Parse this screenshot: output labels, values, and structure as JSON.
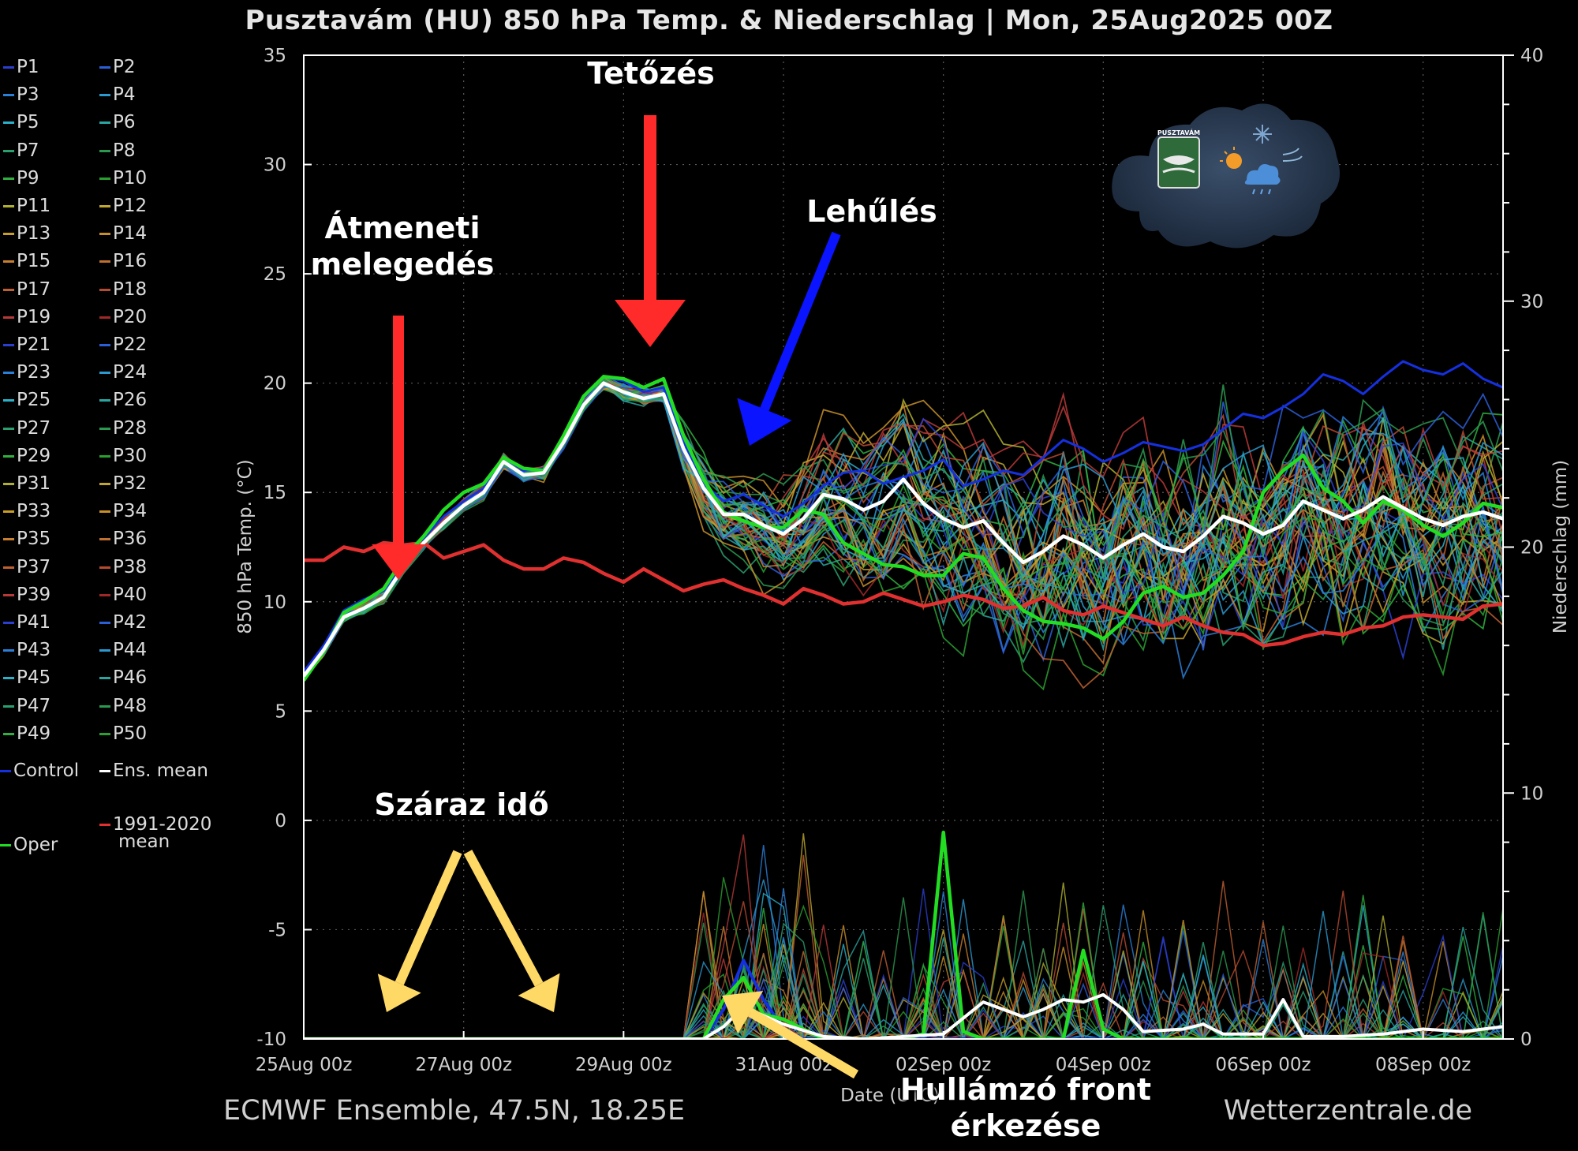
{
  "title": "Pusztavám  (HU)  850 hPa Temp. & Niederschlag | Mon, 25Aug2025 00Z",
  "footer": {
    "left": "ECMWF Ensemble, 47.5N, 18.25E",
    "right": "Wetterzentrale.de",
    "xlabel_partial": "Date (UTC)"
  },
  "legend": {
    "members": [
      "P1",
      "P2",
      "P3",
      "P4",
      "P5",
      "P6",
      "P7",
      "P8",
      "P9",
      "P10",
      "P11",
      "P12",
      "P13",
      "P14",
      "P15",
      "P16",
      "P17",
      "P18",
      "P19",
      "P20",
      "P21",
      "P22",
      "P23",
      "P24",
      "P25",
      "P26",
      "P27",
      "P28",
      "P29",
      "P30",
      "P31",
      "P32",
      "P33",
      "P34",
      "P35",
      "P36",
      "P37",
      "P38",
      "P39",
      "P40",
      "P41",
      "P42",
      "P43",
      "P44",
      "P45",
      "P46",
      "P47",
      "P48",
      "P49",
      "P50"
    ],
    "member_colors": [
      "#2a3fd0",
      "#2b5fd8",
      "#2a7fd8",
      "#2a9ad0",
      "#2ab0c8",
      "#2aa6a0",
      "#2aa070",
      "#2a9a50",
      "#30b040",
      "#2aa030",
      "#b0b030",
      "#c0a830",
      "#c8a028",
      "#c89028",
      "#c88030",
      "#c07030",
      "#c06030",
      "#b84a30",
      "#b83a38",
      "#a02828",
      "#2a3fd0",
      "#2b5fd8",
      "#2a7fd8",
      "#2a9ad0",
      "#2ab0c8",
      "#2aa6a0",
      "#2aa070",
      "#2a9a50",
      "#30b040",
      "#2aa030",
      "#b0b030",
      "#c0a830",
      "#c8a028",
      "#c89028",
      "#c88030",
      "#c07030",
      "#c06030",
      "#b84a30",
      "#b83a38",
      "#a02828",
      "#2a3fd0",
      "#2b5fd8",
      "#2a7fd8",
      "#2a9ad0",
      "#2ab0c8",
      "#2aa6a0",
      "#2aa070",
      "#2a9a50",
      "#30b040",
      "#2aa030"
    ],
    "control": "Control",
    "ens_mean": "Ens. mean",
    "clim_line1": "1991-2020",
    "clim_line2": "mean",
    "oper": "Oper"
  },
  "annotations": {
    "warming_line1": "Átmeneti",
    "warming_line2": "melegedés",
    "peak": "Tetőzés",
    "cooling": "Lehűlés",
    "dry": "Száraz idő",
    "front_line1": "Hullámzó front",
    "front_line2": "érkezése"
  },
  "logo_text": "PUSZTAVÁM",
  "colors": {
    "background": "#000000",
    "ens_mean": "#ffffff",
    "climate": "#e03030",
    "oper": "#22dd22",
    "control": "#1530e0",
    "arrow_red": "#ff2a2a",
    "arrow_blue": "#0a14ff",
    "arrow_yellow": "#ffd966"
  },
  "chart_data": {
    "type": "line",
    "ylabel_left": "850 hPa Temp. (°C)",
    "ylabel_right": "Niederschlag (mm)",
    "ylim_left": [
      -10,
      35
    ],
    "ylim_right": [
      0,
      40
    ],
    "yticks_left": [
      -10,
      -5,
      0,
      5,
      10,
      15,
      20,
      25,
      30,
      35
    ],
    "yticks_right": [
      0,
      10,
      20,
      30,
      40
    ],
    "x_unit": "days since 25Aug 00z",
    "xlim": [
      0,
      15
    ],
    "xticks": [
      {
        "x": 0,
        "label": "25Aug 00z"
      },
      {
        "x": 2,
        "label": "27Aug 00z"
      },
      {
        "x": 4,
        "label": "29Aug 00z"
      },
      {
        "x": 6,
        "label": "31Aug 00z"
      },
      {
        "x": 8,
        "label": "02Sep 00z"
      },
      {
        "x": 10,
        "label": "04Sep 00z"
      },
      {
        "x": 12,
        "label": "06Sep 00z"
      },
      {
        "x": 14,
        "label": "08Sep 00z"
      }
    ],
    "grid": true,
    "series": [
      {
        "name": "1991-2020 mean",
        "axis": "left",
        "x": [
          0,
          0.25,
          0.5,
          0.75,
          1,
          1.25,
          1.5,
          1.75,
          2,
          2.25,
          2.5,
          2.75,
          3,
          3.25,
          3.5,
          3.75,
          4,
          4.25,
          4.5,
          4.75,
          5,
          5.25,
          5.5,
          5.75,
          6,
          6.25,
          6.5,
          6.75,
          7,
          7.25,
          7.5,
          7.75,
          8,
          8.25,
          8.5,
          8.75,
          9,
          9.25,
          9.5,
          9.75,
          10,
          10.25,
          10.5,
          10.75,
          11,
          11.25,
          11.5,
          11.75,
          12,
          12.25,
          12.5,
          12.75,
          13,
          13.25,
          13.5,
          13.75,
          14,
          14.25,
          14.5,
          14.75,
          15
        ],
        "y": [
          11.9,
          11.9,
          12.5,
          12.3,
          12.7,
          12.6,
          12.7,
          12.0,
          12.3,
          12.6,
          11.9,
          11.5,
          11.5,
          12.0,
          11.8,
          11.3,
          10.9,
          11.5,
          11.0,
          10.5,
          10.8,
          11.0,
          10.6,
          10.3,
          9.9,
          10.6,
          10.3,
          9.9,
          10.0,
          10.4,
          10.1,
          9.8,
          10.0,
          10.3,
          10.1,
          9.7,
          9.8,
          10.2,
          9.6,
          9.4,
          9.8,
          9.5,
          9.2,
          8.9,
          9.3,
          8.9,
          8.6,
          8.5,
          8.0,
          8.1,
          8.4,
          8.6,
          8.5,
          8.8,
          8.9,
          9.3,
          9.4,
          9.3,
          9.2,
          9.8,
          9.9
        ]
      },
      {
        "name": "Ens. mean",
        "axis": "left",
        "x": [
          0,
          0.25,
          0.5,
          0.75,
          1,
          1.25,
          1.5,
          1.75,
          2,
          2.25,
          2.5,
          2.75,
          3,
          3.25,
          3.5,
          3.75,
          4,
          4.25,
          4.5,
          4.75,
          5,
          5.25,
          5.5,
          5.75,
          6,
          6.25,
          6.5,
          6.75,
          7,
          7.25,
          7.5,
          7.75,
          8,
          8.25,
          8.5,
          8.75,
          9,
          9.25,
          9.5,
          9.75,
          10,
          10.25,
          10.5,
          10.75,
          11,
          11.25,
          11.5,
          11.75,
          12,
          12.25,
          12.5,
          12.75,
          13,
          13.25,
          13.5,
          13.75,
          14,
          14.25,
          14.5,
          14.75,
          15
        ],
        "y": [
          6.6,
          7.8,
          9.3,
          9.7,
          10.2,
          11.6,
          12.7,
          13.6,
          14.4,
          15.0,
          16.4,
          15.8,
          15.9,
          17.3,
          19.0,
          20.0,
          19.6,
          19.3,
          19.5,
          17.0,
          15.2,
          14.0,
          14.0,
          13.5,
          13.1,
          13.8,
          14.9,
          14.7,
          14.2,
          14.6,
          15.6,
          14.5,
          13.8,
          13.4,
          13.7,
          12.7,
          11.8,
          12.3,
          13.0,
          12.6,
          12.0,
          12.6,
          13.1,
          12.5,
          12.3,
          13.0,
          13.9,
          13.6,
          13.1,
          13.5,
          14.6,
          14.2,
          13.8,
          14.2,
          14.8,
          14.3,
          13.8,
          13.5,
          13.9,
          14.1,
          13.8
        ]
      },
      {
        "name": "Oper",
        "axis": "left",
        "x": [
          0,
          0.25,
          0.5,
          0.75,
          1,
          1.25,
          1.5,
          1.75,
          2,
          2.25,
          2.5,
          2.75,
          3,
          3.25,
          3.5,
          3.75,
          4,
          4.25,
          4.5,
          4.75,
          5,
          5.25,
          5.5,
          5.75,
          6,
          6.25,
          6.5,
          6.75,
          7,
          7.25,
          7.5,
          7.75,
          8,
          8.25,
          8.5,
          8.75,
          9,
          9.25,
          9.5,
          9.75,
          10,
          10.25,
          10.5,
          10.75,
          11,
          11.25,
          11.5,
          11.75,
          12,
          12.25,
          12.5,
          12.75,
          13,
          13.25,
          13.5,
          13.75,
          14,
          14.25,
          14.5,
          14.75,
          15
        ],
        "y": [
          6.4,
          7.7,
          9.5,
          10.0,
          10.6,
          12.0,
          13.0,
          14.2,
          15.0,
          15.4,
          16.6,
          16.1,
          16.0,
          17.6,
          19.4,
          20.3,
          20.2,
          19.8,
          20.2,
          17.6,
          15.6,
          14.1,
          13.7,
          13.4,
          13.4,
          14.2,
          14.0,
          12.7,
          12.2,
          11.7,
          11.6,
          11.2,
          11.2,
          12.2,
          12.0,
          10.6,
          9.6,
          9.1,
          9.0,
          8.8,
          8.3,
          9.1,
          10.4,
          10.7,
          10.2,
          10.4,
          11.2,
          12.3,
          15.0,
          16.0,
          16.7,
          15.2,
          14.6,
          13.6,
          14.6,
          14.2,
          13.5,
          13.0,
          13.6,
          14.5,
          14.3
        ]
      },
      {
        "name": "Control",
        "axis": "left",
        "x": [
          0,
          0.25,
          0.5,
          0.75,
          1,
          1.25,
          1.5,
          1.75,
          2,
          2.25,
          2.5,
          2.75,
          3,
          3.25,
          3.5,
          3.75,
          4,
          4.25,
          4.5,
          4.75,
          5,
          5.25,
          5.5,
          5.75,
          6,
          6.25,
          6.5,
          6.75,
          7,
          7.25,
          7.5,
          7.75,
          8,
          8.25,
          8.5,
          8.75,
          9,
          9.25,
          9.5,
          9.75,
          10,
          10.25,
          10.5,
          10.75,
          11,
          11.25,
          11.5,
          11.75,
          12,
          12.25,
          12.5,
          12.75,
          13,
          13.25,
          13.5,
          13.75,
          14,
          14.25,
          14.5,
          14.75,
          15
        ],
        "y": [
          6.8,
          8.0,
          9.6,
          10.1,
          10.5,
          11.8,
          12.9,
          13.9,
          14.6,
          15.2,
          16.6,
          16.0,
          16.1,
          17.5,
          19.3,
          20.3,
          20.1,
          19.6,
          19.8,
          17.3,
          15.4,
          14.6,
          14.9,
          14.4,
          13.9,
          14.5,
          15.3,
          15.9,
          16.0,
          15.4,
          15.7,
          16.0,
          16.5,
          15.3,
          15.6,
          16.0,
          15.8,
          16.6,
          17.4,
          17.0,
          16.4,
          16.8,
          17.3,
          17.1,
          16.9,
          17.2,
          17.9,
          18.6,
          18.4,
          18.9,
          19.5,
          20.4,
          20.1,
          19.5,
          20.3,
          21.0,
          20.6,
          20.4,
          20.9,
          20.2,
          19.8
        ]
      },
      {
        "name": "Ens. mean precip",
        "axis": "right",
        "x": [
          0,
          1,
          2,
          3,
          4,
          4.5,
          5,
          5.25,
          5.5,
          6,
          6.5,
          7,
          7.5,
          8,
          8.5,
          9,
          9.25,
          9.5,
          9.75,
          10,
          10.25,
          10.5,
          11,
          11.25,
          11.5,
          11.75,
          12,
          12.25,
          12.5,
          13,
          13.5,
          14,
          14.5,
          15
        ],
        "y": [
          0,
          0,
          0,
          0,
          0,
          0,
          0,
          0.5,
          1.3,
          0.6,
          0.1,
          0,
          0.1,
          0.2,
          1.5,
          0.9,
          1.2,
          1.6,
          1.5,
          1.8,
          1.2,
          0.3,
          0.4,
          0.6,
          0.2,
          0.2,
          0.2,
          1.6,
          0.1,
          0.1,
          0.2,
          0.4,
          0.3,
          0.5
        ]
      },
      {
        "name": "Oper precip",
        "axis": "right",
        "x": [
          0,
          1,
          2,
          3,
          4,
          5,
          5.25,
          5.5,
          5.75,
          6,
          6.5,
          7,
          7.5,
          7.75,
          8,
          8.25,
          8.5,
          9,
          9.5,
          9.75,
          10,
          10.25,
          10.5,
          11,
          12,
          13,
          14,
          15
        ],
        "y": [
          0,
          0,
          0,
          0,
          0,
          0,
          1.6,
          2.5,
          1.0,
          0.8,
          0,
          0,
          0,
          0.2,
          8.4,
          0.3,
          0,
          0,
          0,
          3.6,
          0.4,
          0,
          0,
          0,
          0,
          0,
          0,
          0
        ]
      },
      {
        "name": "Control precip",
        "axis": "right",
        "x": [
          0,
          1,
          2,
          3,
          4,
          5,
          5.25,
          5.5,
          5.75,
          6,
          6.25,
          6.5,
          7,
          8,
          9,
          10,
          11,
          12,
          13,
          14,
          15
        ],
        "y": [
          0,
          0,
          0,
          0,
          0,
          0,
          1.2,
          3.2,
          1.6,
          0.4,
          0,
          0,
          0,
          0,
          0,
          0,
          0,
          0,
          0,
          0,
          0
        ]
      }
    ],
    "ensemble_members_drawn": 50
  }
}
